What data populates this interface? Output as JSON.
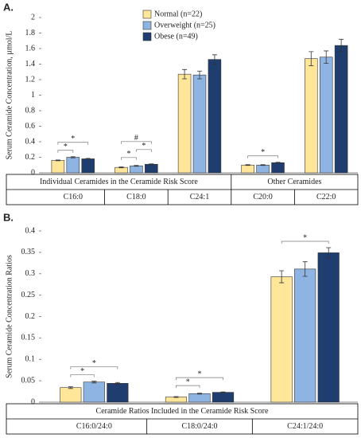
{
  "chart_data": [
    {
      "type": "bar",
      "label": "A.",
      "y_label": "Serum Ceramide Concentration, µmol/L",
      "categories": [
        "C16:0",
        "C18:0",
        "C24:1",
        "C20:0",
        "C22:0"
      ],
      "groups": [
        {
          "label": "Individual Ceramides in the Ceramide Risk Score",
          "span": 3
        },
        {
          "label": "Other Ceramides",
          "span": 2
        }
      ],
      "series": [
        {
          "name": "Normal (n=22)",
          "color": "#ffe699",
          "values": [
            0.16,
            0.07,
            1.27,
            0.1,
            1.47
          ],
          "errors": [
            0.005,
            0.005,
            0.06,
            0.005,
            0.09
          ]
        },
        {
          "name": "Overweight (n=25)",
          "color": "#8eb4e3",
          "values": [
            0.2,
            0.09,
            1.26,
            0.1,
            1.49
          ],
          "errors": [
            0.008,
            0.005,
            0.05,
            0.005,
            0.08
          ]
        },
        {
          "name": "Obese (n=49)",
          "color": "#1f3d6e",
          "values": [
            0.18,
            0.11,
            1.46,
            0.13,
            1.64
          ],
          "errors": [
            0.006,
            0.005,
            0.06,
            0.006,
            0.08
          ]
        }
      ],
      "ylim": [
        0,
        2
      ],
      "yticks": [
        0,
        0.2,
        0.4,
        0.6,
        0.8,
        1,
        1.2,
        1.4,
        1.6,
        1.8,
        2
      ],
      "legend": "top",
      "annotations": [
        {
          "text": "*",
          "category": 0,
          "pair": [
            0,
            1
          ]
        },
        {
          "text": "*",
          "category": 0,
          "pair": [
            0,
            2
          ]
        },
        {
          "text": "*",
          "category": 1,
          "pair": [
            0,
            1
          ]
        },
        {
          "text": "*",
          "category": 1,
          "pair": [
            1,
            2
          ]
        },
        {
          "text": "#",
          "category": 1,
          "pair": [
            0,
            2
          ]
        },
        {
          "text": "*",
          "category": 3,
          "pair": [
            0,
            2
          ]
        }
      ]
    },
    {
      "type": "bar",
      "label": "B.",
      "y_label": "Serum Ceramide Concentration Ratios",
      "categories": [
        "C16:0/24:0",
        "C18:0/24:0",
        "C24:1/24:0"
      ],
      "groups": [
        {
          "label": "Ceramide Ratios Included in the Ceramide Risk Score",
          "span": 3
        }
      ],
      "series": [
        {
          "name": "Normal (n=22)",
          "color": "#ffe699",
          "values": [
            0.034,
            0.012,
            0.293
          ],
          "errors": [
            0.002,
            0.001,
            0.014
          ]
        },
        {
          "name": "Overweight (n=25)",
          "color": "#8eb4e3",
          "values": [
            0.047,
            0.02,
            0.311
          ],
          "errors": [
            0.002,
            0.001,
            0.017
          ]
        },
        {
          "name": "Obese (n=49)",
          "color": "#1f3d6e",
          "values": [
            0.044,
            0.023,
            0.349
          ],
          "errors": [
            0.002,
            0.001,
            0.012
          ]
        }
      ],
      "ylim": [
        0,
        0.4
      ],
      "yticks": [
        0,
        0.05,
        0.1,
        0.15,
        0.2,
        0.25,
        0.3,
        0.35,
        0.4
      ],
      "legend": "none",
      "annotations": [
        {
          "text": "*",
          "category": 0,
          "pair": [
            0,
            1
          ]
        },
        {
          "text": "*",
          "category": 0,
          "pair": [
            0,
            2
          ]
        },
        {
          "text": "*",
          "category": 1,
          "pair": [
            0,
            1
          ]
        },
        {
          "text": "*",
          "category": 1,
          "pair": [
            0,
            2
          ]
        },
        {
          "text": "*",
          "category": 2,
          "pair": [
            0,
            2
          ]
        }
      ]
    }
  ]
}
